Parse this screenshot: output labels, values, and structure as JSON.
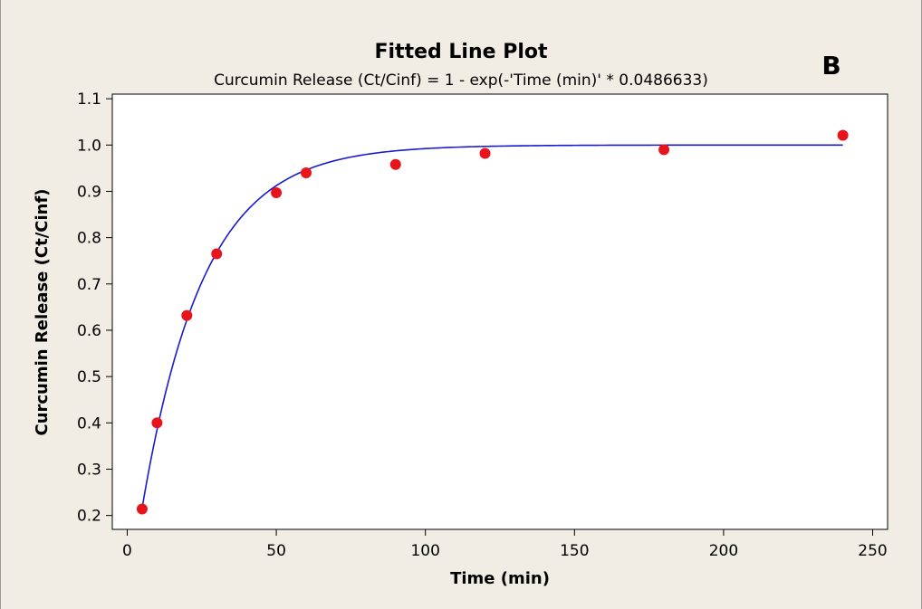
{
  "chart_data": {
    "type": "scatter",
    "title": "Fitted Line Plot",
    "subtitle": "Curcumin Release (Ct/Cinf) = 1 - exp(-'Time (min)' * 0.0486633)",
    "panel_label": "B",
    "xlabel": "Time (min)",
    "ylabel": "Curcumin Release (Ct/Cinf)",
    "xlim": [
      -5,
      255
    ],
    "ylim": [
      0.17,
      1.11
    ],
    "x_ticks": [
      0,
      50,
      100,
      150,
      200,
      250
    ],
    "x_tick_labels": [
      "0",
      "50",
      "100",
      "150",
      "200",
      "250"
    ],
    "y_ticks": [
      0.2,
      0.3,
      0.4,
      0.5,
      0.6,
      0.7,
      0.8,
      0.9,
      1.0,
      1.1
    ],
    "y_tick_labels": [
      "0.2",
      "0.3",
      "0.4",
      "0.5",
      "0.6",
      "0.7",
      "0.8",
      "0.9",
      "1.0",
      "1.1"
    ],
    "grid": false,
    "series": [
      {
        "kind": "points",
        "color": "#e8141c",
        "x": [
          5,
          10,
          20,
          30,
          50,
          60,
          90,
          120,
          180,
          240
        ],
        "y": [
          0.214,
          0.4,
          0.632,
          0.765,
          0.897,
          0.94,
          0.958,
          0.982,
          0.99,
          1.021
        ]
      },
      {
        "kind": "fit_line",
        "color": "#1a1ad0",
        "equation": "1 - exp(-x * 0.0486633)",
        "rate": 0.0486633,
        "x_range": [
          5,
          240
        ]
      }
    ]
  },
  "colors": {
    "background": "#f1ede4",
    "plot_area": "#ffffff"
  }
}
